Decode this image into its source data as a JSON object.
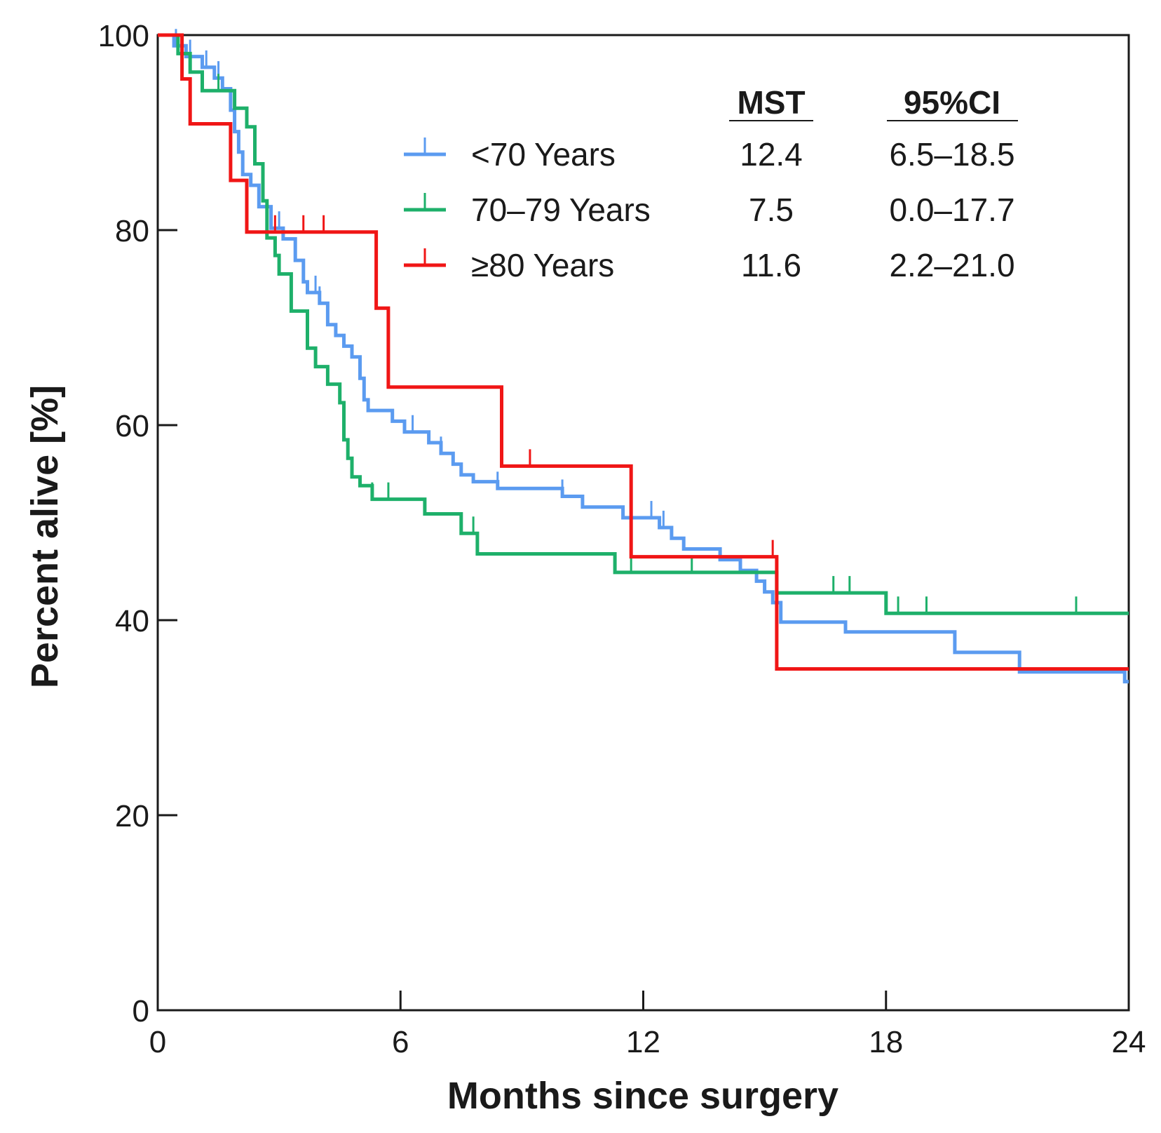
{
  "chart_data": {
    "type": "line",
    "subtype": "kaplan-meier",
    "xlabel": "Months since surgery",
    "ylabel": "Percent alive [%]",
    "xlim": [
      0,
      24
    ],
    "ylim": [
      0,
      100
    ],
    "xticks": [
      0,
      6,
      12,
      18,
      24
    ],
    "yticks": [
      0,
      20,
      40,
      60,
      80,
      100
    ],
    "grid": false,
    "legend_position": "top-right",
    "legend_headers": {
      "mst": "MST",
      "ci": "95%CI"
    },
    "series": [
      {
        "name": "<70 Years",
        "color": "#5b9bf0",
        "mst": "12.4",
        "ci": "6.5–18.5",
        "steps": [
          [
            0,
            100
          ],
          [
            0.4,
            98.9
          ],
          [
            0.7,
            97.8
          ],
          [
            1.1,
            96.7
          ],
          [
            1.4,
            95.6
          ],
          [
            1.6,
            94.5
          ],
          [
            1.8,
            92.3
          ],
          [
            1.9,
            90.1
          ],
          [
            2.0,
            88.0
          ],
          [
            2.1,
            85.7
          ],
          [
            2.3,
            84.6
          ],
          [
            2.5,
            82.4
          ],
          [
            2.8,
            80.2
          ],
          [
            3.1,
            79.1
          ],
          [
            3.4,
            76.9
          ],
          [
            3.6,
            74.7
          ],
          [
            3.7,
            73.6
          ],
          [
            4.0,
            72.5
          ],
          [
            4.2,
            70.3
          ],
          [
            4.4,
            69.2
          ],
          [
            4.6,
            68.1
          ],
          [
            4.8,
            67.0
          ],
          [
            5.0,
            64.8
          ],
          [
            5.1,
            62.6
          ],
          [
            5.2,
            61.5
          ],
          [
            5.8,
            60.4
          ],
          [
            6.1,
            59.3
          ],
          [
            6.7,
            58.2
          ],
          [
            7.0,
            57.1
          ],
          [
            7.3,
            56.0
          ],
          [
            7.5,
            54.9
          ],
          [
            7.8,
            54.2
          ],
          [
            8.4,
            53.5
          ],
          [
            10.0,
            52.7
          ],
          [
            10.5,
            51.6
          ],
          [
            11.5,
            50.5
          ],
          [
            12.4,
            49.5
          ],
          [
            12.7,
            48.4
          ],
          [
            13.0,
            47.3
          ],
          [
            13.9,
            46.2
          ],
          [
            14.4,
            45.1
          ],
          [
            14.8,
            44.0
          ],
          [
            15.0,
            42.9
          ],
          [
            15.2,
            41.8
          ],
          [
            15.4,
            39.8
          ],
          [
            17.0,
            38.8
          ],
          [
            19.7,
            36.7
          ],
          [
            21.3,
            34.7
          ],
          [
            23.9,
            33.7
          ]
        ],
        "censor": [
          0.45,
          0.8,
          1.2,
          1.5,
          3.0,
          3.9,
          4.0,
          6.3,
          7.0,
          8.4,
          10.0,
          12.2,
          12.5
        ]
      },
      {
        "name": "70–79 Years",
        "color": "#1eb06a",
        "mst": "7.5",
        "ci": "0.0–17.7",
        "steps": [
          [
            0,
            100
          ],
          [
            0.5,
            98.1
          ],
          [
            0.8,
            96.2
          ],
          [
            1.1,
            94.3
          ],
          [
            1.9,
            92.5
          ],
          [
            2.2,
            90.6
          ],
          [
            2.4,
            86.8
          ],
          [
            2.6,
            83.0
          ],
          [
            2.7,
            79.2
          ],
          [
            2.9,
            77.4
          ],
          [
            3.0,
            75.5
          ],
          [
            3.3,
            71.7
          ],
          [
            3.7,
            67.9
          ],
          [
            3.9,
            66.0
          ],
          [
            4.2,
            64.2
          ],
          [
            4.5,
            62.3
          ],
          [
            4.6,
            58.5
          ],
          [
            4.7,
            56.6
          ],
          [
            4.8,
            54.7
          ],
          [
            5.0,
            53.8
          ],
          [
            5.3,
            52.4
          ],
          [
            6.6,
            50.9
          ],
          [
            7.5,
            48.9
          ],
          [
            7.9,
            46.8
          ],
          [
            11.3,
            44.9
          ],
          [
            15.3,
            42.8
          ],
          [
            18.0,
            40.7
          ]
        ],
        "censor": [
          1.5,
          1.9,
          5.3,
          5.7,
          7.8,
          11.7,
          13.2,
          16.7,
          17.1,
          18.3,
          19.0,
          22.7
        ]
      },
      {
        "name": "≥80 Years",
        "color": "#f01616",
        "mst": "11.6",
        "ci": "2.2–21.0",
        "steps": [
          [
            0,
            100
          ],
          [
            0.6,
            95.5
          ],
          [
            0.8,
            90.9
          ],
          [
            1.8,
            85.1
          ],
          [
            2.2,
            79.8
          ],
          [
            5.4,
            72.0
          ],
          [
            5.7,
            63.9
          ],
          [
            8.5,
            55.8
          ],
          [
            11.7,
            46.5
          ],
          [
            15.3,
            35.0
          ]
        ],
        "censor": [
          2.9,
          3.6,
          4.1,
          9.2,
          15.2
        ]
      }
    ]
  }
}
